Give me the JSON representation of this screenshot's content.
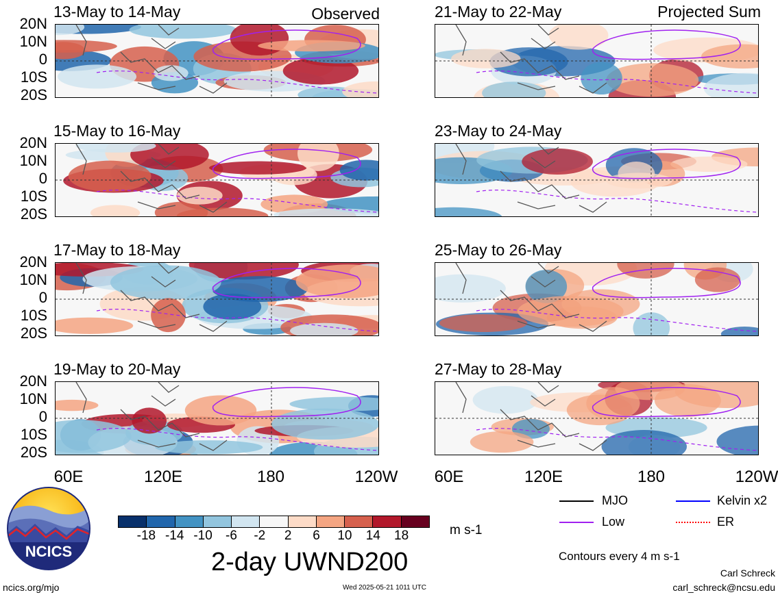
{
  "title": "2-day UWND200",
  "panels": [
    {
      "id": "p1",
      "title": "13-May to 14-May",
      "tag": "Observed",
      "seed": 1
    },
    {
      "id": "p2",
      "title": "21-May to 22-May",
      "tag": "Projected Sum",
      "seed": 2
    },
    {
      "id": "p3",
      "title": "15-May to 16-May",
      "tag": "",
      "seed": 3
    },
    {
      "id": "p4",
      "title": "23-May to 24-May",
      "tag": "",
      "seed": 4
    },
    {
      "id": "p5",
      "title": "17-May to 18-May",
      "tag": "",
      "seed": 5
    },
    {
      "id": "p6",
      "title": "25-May to 26-May",
      "tag": "",
      "seed": 6
    },
    {
      "id": "p7",
      "title": "19-May to 20-May",
      "tag": "",
      "seed": 7
    },
    {
      "id": "p8",
      "title": "27-May to 28-May",
      "tag": "",
      "seed": 8
    }
  ],
  "lat_labels": [
    "20N",
    "10N",
    "0",
    "10S",
    "20S"
  ],
  "lon_labels": [
    "60E",
    "120E",
    "180",
    "120W"
  ],
  "colorbar": {
    "ticks": [
      "-18",
      "-14",
      "-10",
      "-6",
      "-2",
      "2",
      "6",
      "10",
      "14",
      "18"
    ],
    "colors": [
      "#08306b",
      "#2166ac",
      "#4393c3",
      "#92c5de",
      "#d1e5f0",
      "#f7f7f7",
      "#fddbc7",
      "#f4a582",
      "#d6604d",
      "#b2182b",
      "#67001f"
    ],
    "units": "m s-1"
  },
  "legend": [
    {
      "label": "MJO",
      "color": "#000000",
      "style": "solid"
    },
    {
      "label": "Kelvin x2",
      "color": "#0000ff",
      "style": "solid"
    },
    {
      "label": "Low",
      "color": "#a020f0",
      "style": "solid"
    },
    {
      "label": "ER",
      "color": "#ff0000",
      "style": "dotted"
    }
  ],
  "contour_note": "Contours every 4 m s-1",
  "footer": {
    "website": "ncics.org/mjo",
    "timestamp": "Wed 2025-05-21 1011 UTC",
    "author": "Carl Schreck",
    "email": "carl_schreck@ncsu.edu"
  },
  "logo_text": "NCICS"
}
